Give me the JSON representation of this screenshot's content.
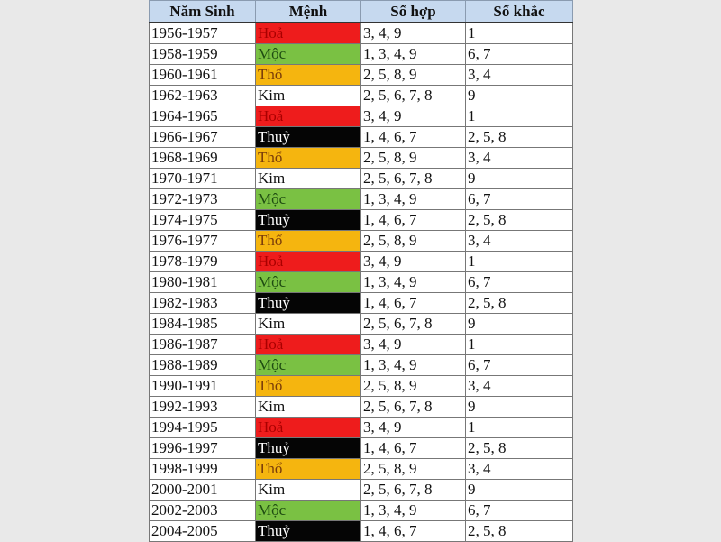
{
  "headers": [
    "Năm Sinh",
    "Mệnh",
    "Số hợp",
    "Số khắc"
  ],
  "element_colors": {
    "Hoả": "#ee1c1c",
    "Mộc": "#7ac143",
    "Thổ": "#f5b50f",
    "Kim": "#ffffff",
    "Thuỷ": "#050505"
  },
  "rows": [
    {
      "years": "1956-1957",
      "menh": "Hoả",
      "hop": "3, 4, 9",
      "khac": "1"
    },
    {
      "years": "1958-1959",
      "menh": "Mộc",
      "hop": "1, 3, 4, 9",
      "khac": "6, 7"
    },
    {
      "years": "1960-1961",
      "menh": "Thổ",
      "hop": "2, 5, 8, 9",
      "khac": "3, 4"
    },
    {
      "years": "1962-1963",
      "menh": "Kim",
      "hop": "2, 5, 6, 7, 8",
      "khac": "9"
    },
    {
      "years": "1964-1965",
      "menh": "Hoả",
      "hop": "3, 4, 9",
      "khac": "1"
    },
    {
      "years": "1966-1967",
      "menh": "Thuỷ",
      "hop": "1, 4, 6, 7",
      "khac": "2, 5, 8"
    },
    {
      "years": "1968-1969",
      "menh": "Thổ",
      "hop": "2, 5, 8, 9",
      "khac": "3, 4"
    },
    {
      "years": "1970-1971",
      "menh": "Kim",
      "hop": "2, 5, 6, 7, 8",
      "khac": "9"
    },
    {
      "years": "1972-1973",
      "menh": "Mộc",
      "hop": "1, 3, 4, 9",
      "khac": "6, 7"
    },
    {
      "years": "1974-1975",
      "menh": "Thuỷ",
      "hop": "1, 4, 6, 7",
      "khac": "2, 5, 8"
    },
    {
      "years": "1976-1977",
      "menh": "Thổ",
      "hop": "2, 5, 8, 9",
      "khac": "3, 4"
    },
    {
      "years": "1978-1979",
      "menh": "Hoả",
      "hop": "3, 4, 9",
      "khac": "1"
    },
    {
      "years": "1980-1981",
      "menh": "Mộc",
      "hop": "1, 3, 4, 9",
      "khac": "6, 7"
    },
    {
      "years": "1982-1983",
      "menh": "Thuỷ",
      "hop": "1, 4, 6, 7",
      "khac": "2, 5, 8"
    },
    {
      "years": "1984-1985",
      "menh": "Kim",
      "hop": "2, 5, 6, 7, 8",
      "khac": "9"
    },
    {
      "years": "1986-1987",
      "menh": "Hoả",
      "hop": "3, 4, 9",
      "khac": "1"
    },
    {
      "years": "1988-1989",
      "menh": "Mộc",
      "hop": "1, 3, 4, 9",
      "khac": "6, 7"
    },
    {
      "years": "1990-1991",
      "menh": "Thổ",
      "hop": "2, 5, 8, 9",
      "khac": "3, 4"
    },
    {
      "years": "1992-1993",
      "menh": "Kim",
      "hop": "2, 5, 6, 7, 8",
      "khac": "9"
    },
    {
      "years": "1994-1995",
      "menh": "Hoả",
      "hop": "3, 4, 9",
      "khac": "1"
    },
    {
      "years": "1996-1997",
      "menh": "Thuỷ",
      "hop": "1, 4, 6, 7",
      "khac": "2, 5, 8"
    },
    {
      "years": "1998-1999",
      "menh": "Thổ",
      "hop": "2, 5, 8, 9",
      "khac": "3, 4"
    },
    {
      "years": "2000-2001",
      "menh": "Kim",
      "hop": "2, 5, 6, 7, 8",
      "khac": "9"
    },
    {
      "years": "2002-2003",
      "menh": "Mộc",
      "hop": "1, 3, 4, 9",
      "khac": "6, 7"
    },
    {
      "years": "2004-2005",
      "menh": "Thuỷ",
      "hop": "1, 4, 6, 7",
      "khac": "2, 5, 8"
    }
  ]
}
